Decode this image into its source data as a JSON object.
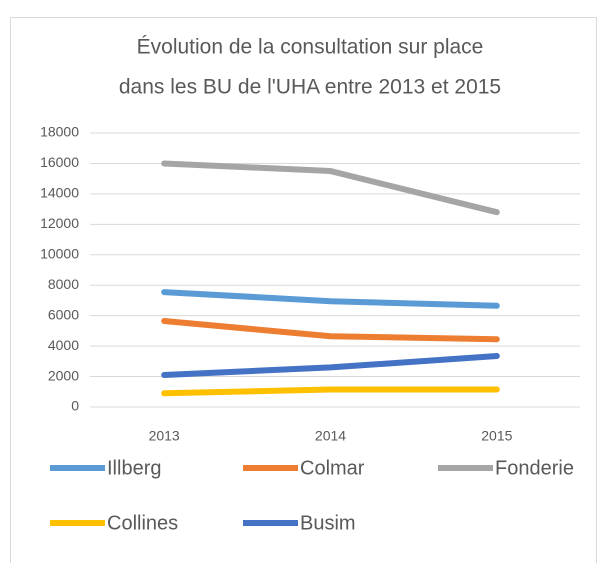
{
  "chart_data": {
    "type": "line",
    "title": [
      "Évolution de la consultation sur place",
      "dans les BU de l'UHA entre 2013 et 2015"
    ],
    "categories": [
      "2013",
      "2014",
      "2015"
    ],
    "series": [
      {
        "name": "Illberg",
        "color": "#5b9bd5",
        "values": [
          7550,
          6950,
          6650
        ]
      },
      {
        "name": "Colmar",
        "color": "#ed7d31",
        "values": [
          5650,
          4650,
          4450
        ]
      },
      {
        "name": "Fonderie",
        "color": "#a5a5a5",
        "values": [
          16000,
          15500,
          12800
        ]
      },
      {
        "name": "Collines",
        "color": "#ffc000",
        "values": [
          900,
          1150,
          1150
        ]
      },
      {
        "name": "Busim",
        "color": "#4472c4",
        "values": [
          2100,
          2600,
          3350
        ]
      }
    ],
    "ylim": [
      0,
      18000
    ],
    "yticks": [
      0,
      2000,
      4000,
      6000,
      8000,
      10000,
      12000,
      14000,
      16000,
      18000
    ],
    "grid": true,
    "legend": "bottom"
  }
}
